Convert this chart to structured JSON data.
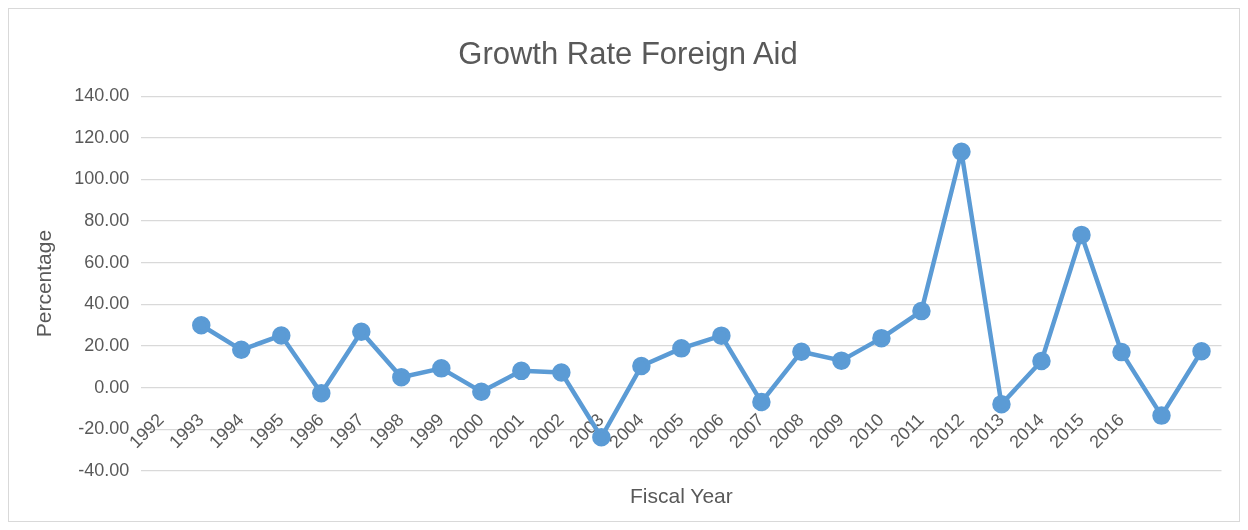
{
  "chart_data": {
    "type": "line",
    "title": "Growth Rate Foreign Aid",
    "xlabel": "Fiscal Year",
    "ylabel": "Percentage",
    "categories": [
      "1992",
      "1993",
      "1994",
      "1995",
      "1996",
      "1997",
      "1998",
      "1999",
      "2000",
      "2001",
      "2002",
      "2003",
      "2004",
      "2005",
      "2006",
      "2007",
      "2008",
      "2009",
      "2010",
      "2011",
      "2012",
      "2013",
      "2014",
      "2015",
      "2016",
      null,
      null
    ],
    "series": [
      {
        "color": "#5b9bd5",
        "values": [
          null,
          30.0,
          18.2,
          25.1,
          -2.7,
          26.9,
          5.0,
          9.3,
          -1.9,
          8.1,
          7.3,
          -23.8,
          10.4,
          18.9,
          25.0,
          -6.9,
          17.3,
          13.0,
          23.8,
          36.8,
          113.3,
          -7.9,
          12.8,
          73.4,
          17.1,
          -13.4,
          17.5
        ]
      }
    ],
    "ylim": [
      -40,
      140
    ],
    "yticks": [
      {
        "value": -40,
        "label": "-40.00"
      },
      {
        "value": -20,
        "label": "-20.00"
      },
      {
        "value": 0,
        "label": "0.00"
      },
      {
        "value": 20,
        "label": "20.00"
      },
      {
        "value": 40,
        "label": "40.00"
      },
      {
        "value": 60,
        "label": "60.00"
      },
      {
        "value": 80,
        "label": "80.00"
      },
      {
        "value": 100,
        "label": "100.00"
      },
      {
        "value": 120,
        "label": "120.00"
      },
      {
        "value": 140,
        "label": "140.00"
      }
    ],
    "grid": "y",
    "legend": false,
    "marker": "circle",
    "line_style": "solid"
  }
}
